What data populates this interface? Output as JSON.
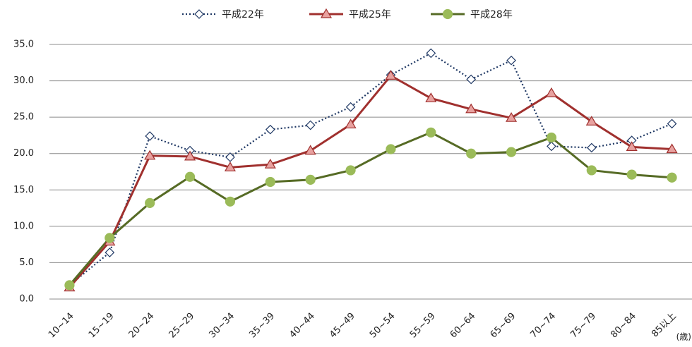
{
  "chart_data": {
    "type": "line",
    "categories": [
      "10~14",
      "15~19",
      "20~24",
      "25~29",
      "30~34",
      "35~39",
      "40~44",
      "45~49",
      "50~54",
      "55~59",
      "60~64",
      "65~69",
      "70~74",
      "75~79",
      "80~84",
      "85以上"
    ],
    "x_unit": "(歳)",
    "series": [
      {
        "name": "平成22年",
        "color": "#1f3864",
        "marker": "diamond",
        "marker_fill": "#ffffff",
        "dashed": true,
        "values": [
          1.9,
          6.4,
          22.4,
          20.4,
          19.5,
          23.3,
          23.9,
          26.4,
          30.8,
          33.8,
          30.2,
          32.8,
          21.0,
          20.8,
          21.8,
          24.1
        ]
      },
      {
        "name": "平成25年",
        "color": "#a0302e",
        "marker": "triangle",
        "marker_fill": "#e8a2a0",
        "dashed": false,
        "values": [
          1.6,
          7.9,
          19.7,
          19.6,
          18.1,
          18.5,
          20.4,
          24.0,
          30.7,
          27.6,
          26.1,
          24.9,
          28.3,
          24.4,
          20.9,
          20.6
        ]
      },
      {
        "name": "平成28年",
        "color": "#566b25",
        "marker": "circle",
        "marker_fill": "#9bbb59",
        "dashed": false,
        "values": [
          1.9,
          8.4,
          13.2,
          16.8,
          13.4,
          16.1,
          16.4,
          17.7,
          20.6,
          22.9,
          20.0,
          20.2,
          22.2,
          17.7,
          17.1,
          16.7
        ]
      }
    ],
    "ylim": [
      0,
      35
    ],
    "yticks": [
      {
        "value": 0,
        "label": "0.0"
      },
      {
        "value": 5,
        "label": "5.0"
      },
      {
        "value": 10,
        "label": "10.0"
      },
      {
        "value": 15,
        "label": "15.0"
      },
      {
        "value": 20,
        "label": "20.0"
      },
      {
        "value": 25,
        "label": "25.0"
      },
      {
        "value": 30,
        "label": "30.0"
      },
      {
        "value": 35,
        "label": "35.0"
      }
    ],
    "grid": true,
    "legend": "top"
  }
}
